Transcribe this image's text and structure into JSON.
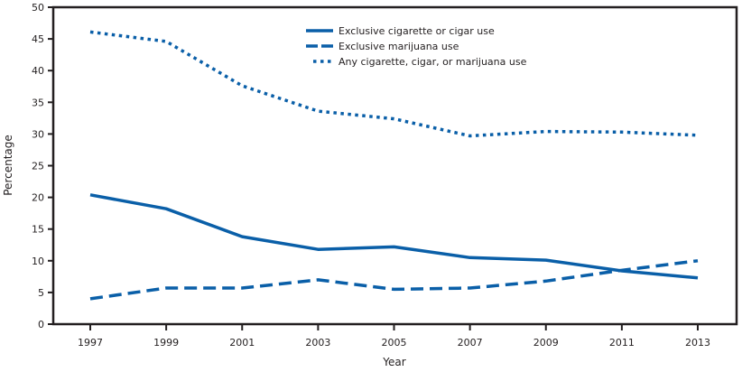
{
  "chart_data": {
    "type": "line",
    "title": "",
    "xlabel": "Year",
    "ylabel": "Percentage",
    "x": [
      1997,
      1999,
      2001,
      2003,
      2005,
      2007,
      2009,
      2011,
      2013
    ],
    "xticks": [
      "1997",
      "1999",
      "2001",
      "2003",
      "2005",
      "2007",
      "2009",
      "2011",
      "2013"
    ],
    "ylim": [
      0,
      50
    ],
    "yticks": [
      "0",
      "5",
      "10",
      "15",
      "20",
      "25",
      "30",
      "35",
      "40",
      "45",
      "50"
    ],
    "grid": false,
    "legend_position": "top-center",
    "line_color": "#0a5fa8",
    "series": [
      {
        "name": "Exclusive cigarette or cigar use",
        "style": "solid",
        "values": [
          20.4,
          18.2,
          13.8,
          11.8,
          12.2,
          10.5,
          10.1,
          8.4,
          7.3
        ]
      },
      {
        "name": "Exclusive marijuana use",
        "style": "dashed",
        "values": [
          4.0,
          5.7,
          5.7,
          7.0,
          5.5,
          5.7,
          6.8,
          8.5,
          10.0
        ]
      },
      {
        "name": "Any cigarette, cigar, or marijuana use",
        "style": "dotted",
        "values": [
          46.1,
          44.6,
          37.6,
          33.6,
          32.4,
          29.7,
          30.4,
          30.3,
          29.8
        ]
      }
    ]
  }
}
